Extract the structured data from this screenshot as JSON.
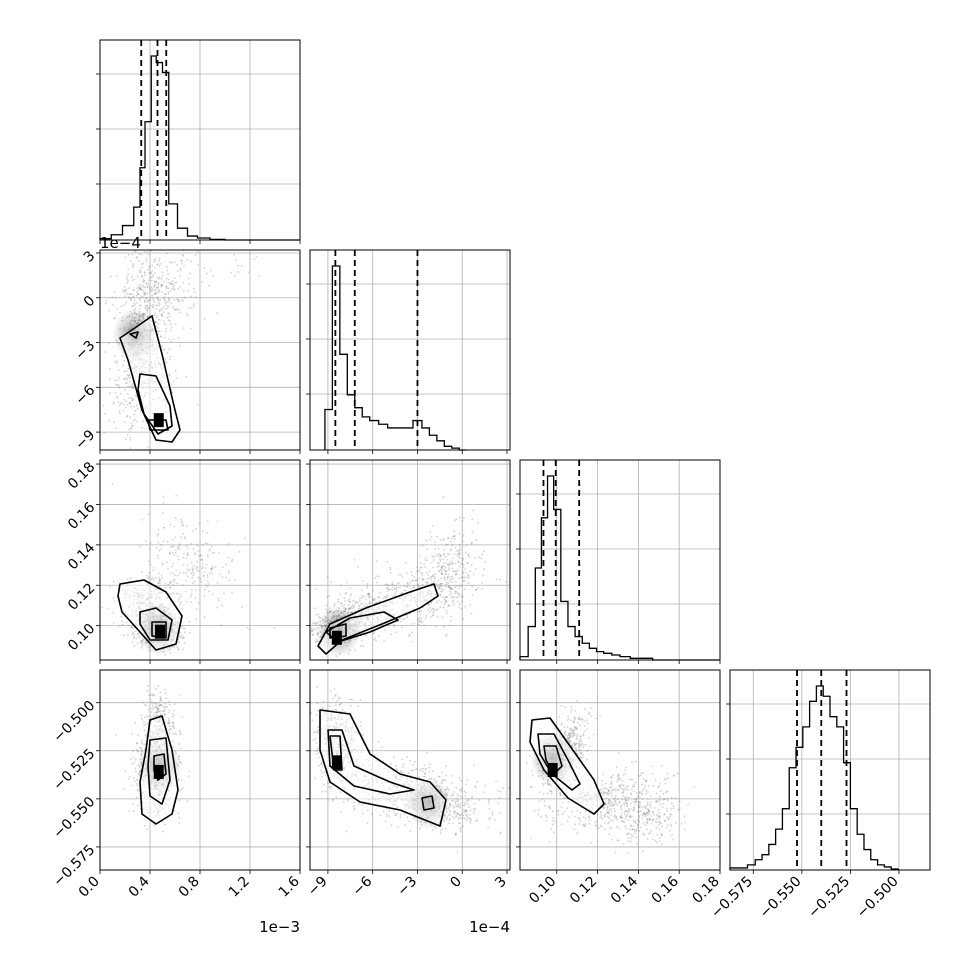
{
  "chart_data": {
    "type": "corner",
    "grid": true,
    "legend": "none",
    "panels": [
      {
        "row": 0,
        "col": 0,
        "kind": "hist",
        "xlim": [
          0,
          0.0016
        ],
        "grid": true,
        "quantiles": [
          0.00033,
          0.00046,
          0.00053
        ],
        "bins": [
          0,
          9e-05,
          0.00018,
          0.00027,
          0.00032,
          0.00036,
          0.00041,
          0.00045,
          0.0005,
          0.00055,
          0.00062,
          0.0007,
          0.00078,
          0.00088,
          0.001,
          0.0016
        ],
        "counts": [
          2,
          8,
          22,
          50,
          110,
          180,
          280,
          270,
          255,
          55,
          18,
          6,
          3,
          1,
          0
        ]
      },
      {
        "row": 1,
        "col": 0,
        "kind": "scatter2d",
        "xlim": [
          0,
          0.0016
        ],
        "ylim": [
          -0.00102,
          0.00032
        ],
        "grid": true,
        "mode": [
          0.00047,
          -0.00082
        ]
      },
      {
        "row": 1,
        "col": 1,
        "kind": "hist",
        "xlim": [
          -0.00102,
          0.00032
        ],
        "grid": true,
        "quantiles": [
          -0.00085,
          -0.00072,
          -0.0003
        ],
        "bins": [
          -0.00092,
          -0.00087,
          -0.00082,
          -0.00077,
          -0.00072,
          -0.00067,
          -0.00062,
          -0.00056,
          -0.0005,
          -0.00044,
          -0.00038,
          -0.00033,
          -0.00027,
          -0.00022,
          -0.00017,
          -0.00012,
          -7e-05,
          -2e-05,
          3e-05
        ],
        "counts": [
          22,
          100,
          52,
          30,
          23,
          18,
          16,
          14,
          12,
          12,
          12,
          16,
          12,
          8,
          5,
          2,
          1,
          0
        ]
      },
      {
        "row": 2,
        "col": 0,
        "kind": "scatter2d",
        "xlim": [
          0,
          0.0016
        ],
        "ylim": [
          0.083,
          0.182
        ],
        "grid": true,
        "mode": [
          0.00048,
          0.097
        ]
      },
      {
        "row": 2,
        "col": 1,
        "kind": "scatter2d",
        "xlim": [
          -0.00102,
          0.00032
        ],
        "ylim": [
          0.083,
          0.182
        ],
        "grid": true,
        "mode": [
          -0.00084,
          0.094
        ]
      },
      {
        "row": 2,
        "col": 2,
        "kind": "hist",
        "xlim": [
          0.082,
          0.18
        ],
        "grid": true,
        "quantiles": [
          0.0935,
          0.0995,
          0.111
        ],
        "bins": [
          0.082,
          0.086,
          0.0895,
          0.0925,
          0.0955,
          0.0985,
          0.102,
          0.1055,
          0.109,
          0.1125,
          0.116,
          0.1195,
          0.123,
          0.127,
          0.131,
          0.136,
          0.141,
          0.147,
          0.155,
          0.163,
          0.18
        ],
        "counts": [
          2,
          20,
          55,
          85,
          110,
          90,
          35,
          20,
          14,
          10,
          7,
          5,
          4,
          3,
          2,
          1,
          1,
          0,
          0,
          0
        ]
      },
      {
        "row": 3,
        "col": 0,
        "kind": "scatter2d",
        "xlim": [
          0,
          0.0016
        ],
        "ylim": [
          -0.587,
          -0.483
        ],
        "grid": true,
        "mode": [
          0.00047,
          -0.536
        ]
      },
      {
        "row": 3,
        "col": 1,
        "kind": "scatter2d",
        "xlim": [
          -0.00102,
          0.00032
        ],
        "ylim": [
          -0.587,
          -0.483
        ],
        "grid": true,
        "mode": [
          -0.00084,
          -0.531
        ]
      },
      {
        "row": 3,
        "col": 2,
        "kind": "scatter2d",
        "xlim": [
          0.082,
          0.18
        ],
        "ylim": [
          -0.587,
          -0.483
        ],
        "grid": true,
        "mode": [
          0.098,
          -0.535
        ]
      },
      {
        "row": 3,
        "col": 3,
        "kind": "hist",
        "xlim": [
          -0.587,
          -0.484
        ],
        "grid": true,
        "quantiles": [
          -0.5525,
          -0.54,
          -0.527
        ],
        "bins": [
          -0.587,
          -0.578,
          -0.574,
          -0.5705,
          -0.567,
          -0.5635,
          -0.56,
          -0.5565,
          -0.553,
          -0.5495,
          -0.546,
          -0.5425,
          -0.539,
          -0.5355,
          -0.532,
          -0.5285,
          -0.525,
          -0.5215,
          -0.518,
          -0.5145,
          -0.511,
          -0.5075,
          -0.504,
          -0.5
        ],
        "counts": [
          2,
          5,
          10,
          15,
          25,
          40,
          60,
          100,
          120,
          140,
          165,
          180,
          170,
          150,
          140,
          105,
          60,
          35,
          20,
          10,
          5,
          3,
          1
        ]
      }
    ],
    "axes": {
      "x_labels": {
        "col0": {
          "ticks": [
            "0.0",
            "0.4",
            "0.8",
            "1.2",
            "1.6"
          ],
          "values": [
            0,
            0.0004,
            0.0008,
            0.0012,
            0.0016
          ],
          "offset": "1e−3"
        },
        "col1": {
          "ticks": [
            "−9",
            "−6",
            "−3",
            "0",
            "3"
          ],
          "values": [
            -0.0009,
            -0.0006,
            -0.0003,
            0,
            0.0003
          ],
          "offset": "1e−4"
        },
        "col2": {
          "ticks": [
            "0.10",
            "0.12",
            "0.14",
            "0.16",
            "0.18"
          ],
          "values": [
            0.1,
            0.12,
            0.14,
            0.16,
            0.18
          ],
          "offset": ""
        },
        "col3": {
          "ticks": [
            "−0.575",
            "−0.550",
            "−0.525",
            "−0.500"
          ],
          "values": [
            -0.575,
            -0.55,
            -0.525,
            -0.5
          ],
          "offset": ""
        }
      },
      "y_labels": {
        "row1": {
          "ticks": [
            "3",
            "0",
            "−3",
            "−6",
            "−9"
          ],
          "values": [
            0.0003,
            0,
            -0.0003,
            -0.0006,
            -0.0009
          ],
          "offset": "1e−4"
        },
        "row2": {
          "ticks": [
            "0.18",
            "0.16",
            "0.14",
            "0.12",
            "0.10"
          ],
          "values": [
            0.18,
            0.16,
            0.14,
            0.12,
            0.1
          ],
          "offset": ""
        },
        "row3": {
          "ticks": [
            "−0.500",
            "−0.525",
            "−0.550",
            "−0.575"
          ],
          "values": [
            -0.5,
            -0.525,
            -0.55,
            -0.575
          ],
          "offset": ""
        }
      }
    },
    "colors": {
      "line": "#000000",
      "points": "#7f7f7f",
      "grid": "#b0b0b0",
      "frame": "#000000"
    }
  }
}
